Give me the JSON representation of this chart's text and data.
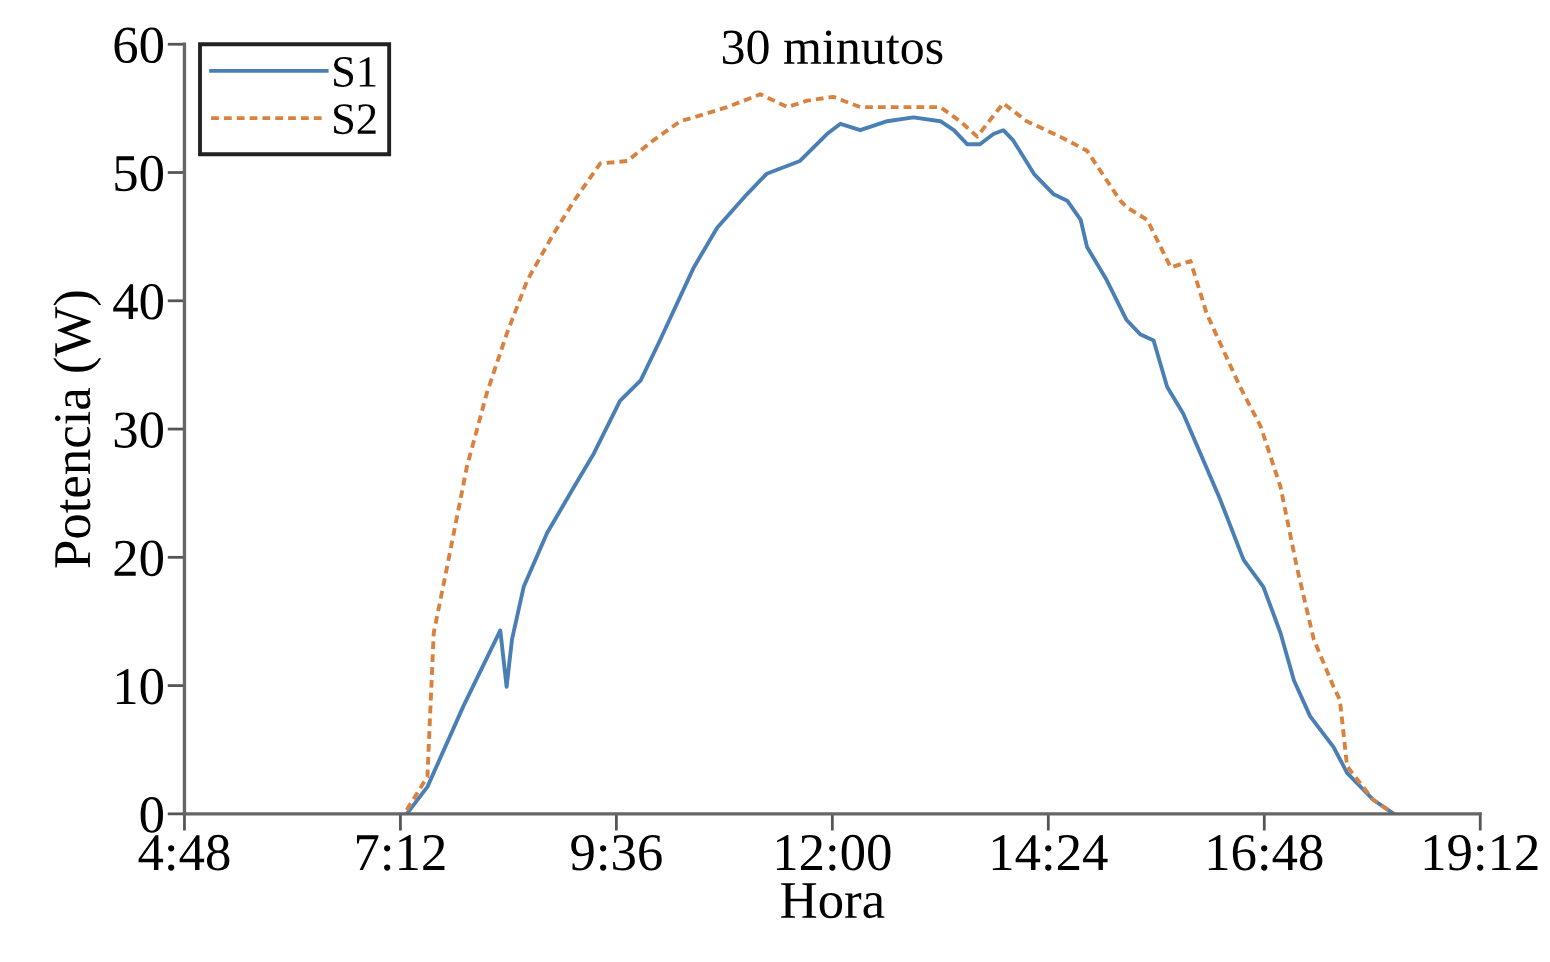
{
  "chart_data": {
    "type": "line",
    "title": "30 minutos",
    "xlabel": "Hora",
    "ylabel": "Potencia (W)",
    "xlim": [
      4.8,
      19.2
    ],
    "xticks": [
      {
        "value": 4.8,
        "label": "4:48"
      },
      {
        "value": 7.2,
        "label": "7:12"
      },
      {
        "value": 9.6,
        "label": "9:36"
      },
      {
        "value": 12,
        "label": "12:00"
      },
      {
        "value": 14.4,
        "label": "14:24"
      },
      {
        "value": 16.8,
        "label": "16:48"
      },
      {
        "value": 19.2,
        "label": "19:12"
      }
    ],
    "ylim": [
      0,
      60
    ],
    "yticks": [
      0,
      10,
      20,
      30,
      40,
      50,
      60
    ],
    "legend": "top left",
    "series": [
      {
        "name": "S1",
        "color": "#4a7fb5",
        "line_style": "solid",
        "x": [
          7.27,
          7.5,
          7.9,
          8.31,
          8.38,
          8.44,
          8.57,
          8.83,
          9.13,
          9.35,
          9.64,
          9.87,
          10.09,
          10.46,
          10.72,
          11.05,
          11.27,
          11.64,
          11.94,
          12.09,
          12.31,
          12.61,
          12.9,
          13.2,
          13.35,
          13.5,
          13.64,
          13.79,
          13.9,
          14.01,
          14.24,
          14.46,
          14.61,
          14.76,
          14.83,
          15.05,
          15.27,
          15.42,
          15.57,
          15.72,
          15.9,
          16.31,
          16.57,
          16.79,
          16.98,
          17.13,
          17.31,
          17.57,
          17.72,
          18.01,
          18.24
        ],
        "values": [
          0,
          2.1,
          8.4,
          14.3,
          9.9,
          13.6,
          17.7,
          21.9,
          25.5,
          28.1,
          32.2,
          33.8,
          37.0,
          42.6,
          45.7,
          48.3,
          49.9,
          50.9,
          53.0,
          53.8,
          53.3,
          54.0,
          54.3,
          54.0,
          53.3,
          52.2,
          52.2,
          53.0,
          53.3,
          52.5,
          49.9,
          48.3,
          47.8,
          46.3,
          44.2,
          41.6,
          38.5,
          37.4,
          36.9,
          33.3,
          31.2,
          24.5,
          19.8,
          17.7,
          14.1,
          10.4,
          7.6,
          5.2,
          3.2,
          1.1,
          0
        ]
      },
      {
        "name": "S2",
        "color": "#d9823f",
        "line_style": "dashed",
        "x": [
          7.27,
          7.5,
          7.57,
          7.72,
          7.94,
          8.16,
          8.38,
          8.61,
          8.9,
          9.13,
          9.42,
          9.72,
          10.01,
          10.31,
          10.46,
          10.83,
          11.2,
          11.5,
          11.72,
          12.01,
          12.31,
          12.68,
          13.2,
          13.42,
          13.61,
          13.72,
          13.9,
          14.16,
          14.53,
          14.83,
          15.2,
          15.27,
          15.5,
          15.76,
          15.98,
          16.16,
          16.53,
          16.76,
          16.98,
          17.16,
          17.35,
          17.57,
          17.64,
          17.72,
          18.01,
          18.24
        ],
        "values": [
          0.3,
          2.9,
          14.1,
          19.3,
          27.1,
          32.8,
          37.4,
          41.6,
          45.2,
          47.8,
          50.7,
          50.9,
          52.5,
          54.0,
          54.3,
          55.1,
          56.1,
          55.1,
          55.6,
          55.9,
          55.1,
          55.1,
          55.1,
          54.0,
          52.8,
          53.8,
          55.4,
          54.0,
          52.8,
          51.7,
          47.8,
          47.3,
          46.3,
          42.6,
          43.1,
          39.0,
          33.3,
          30.2,
          25.5,
          19.3,
          13.6,
          9.9,
          8.9,
          3.7,
          1.1,
          0
        ]
      }
    ]
  }
}
